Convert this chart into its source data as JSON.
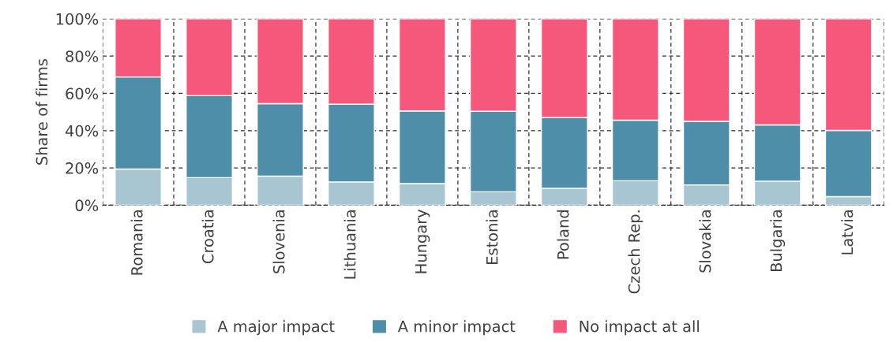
{
  "chart_data": {
    "type": "bar",
    "stacked": true,
    "ylabel": "Share of firms",
    "categories": [
      "Romania",
      "Croatia",
      "Slovenia",
      "Lithuania",
      "Hungary",
      "Estonia",
      "Poland",
      "Czech Rep.",
      "Slovakia",
      "Bulgaria",
      "Latvia"
    ],
    "series": [
      {
        "name": "A major impact",
        "color": "#a7c6d2",
        "values": [
          19.4,
          14.8,
          15.6,
          12.5,
          11.6,
          7.2,
          9.1,
          13.1,
          10.9,
          12.9,
          4.6
        ]
      },
      {
        "name": "A minor impact",
        "color": "#4f8ea9",
        "values": [
          49.4,
          44.0,
          38.9,
          41.7,
          39.0,
          43.2,
          37.9,
          32.5,
          34.1,
          30.2,
          35.5
        ]
      },
      {
        "name": "No impact at all",
        "color": "#f5587a",
        "values": [
          31.2,
          41.2,
          45.5,
          45.8,
          49.4,
          49.6,
          53.0,
          54.4,
          55.0,
          56.9,
          59.9
        ]
      }
    ],
    "ylim": [
      0,
      100
    ],
    "yticks": [
      {
        "value": 0,
        "label": "0%"
      },
      {
        "value": 20,
        "label": "20%"
      },
      {
        "value": 40,
        "label": "40%"
      },
      {
        "value": 60,
        "label": "60%"
      },
      {
        "value": 80,
        "label": "80%"
      },
      {
        "value": 100,
        "label": "100%"
      }
    ],
    "grid": true,
    "legend": "bottom"
  }
}
